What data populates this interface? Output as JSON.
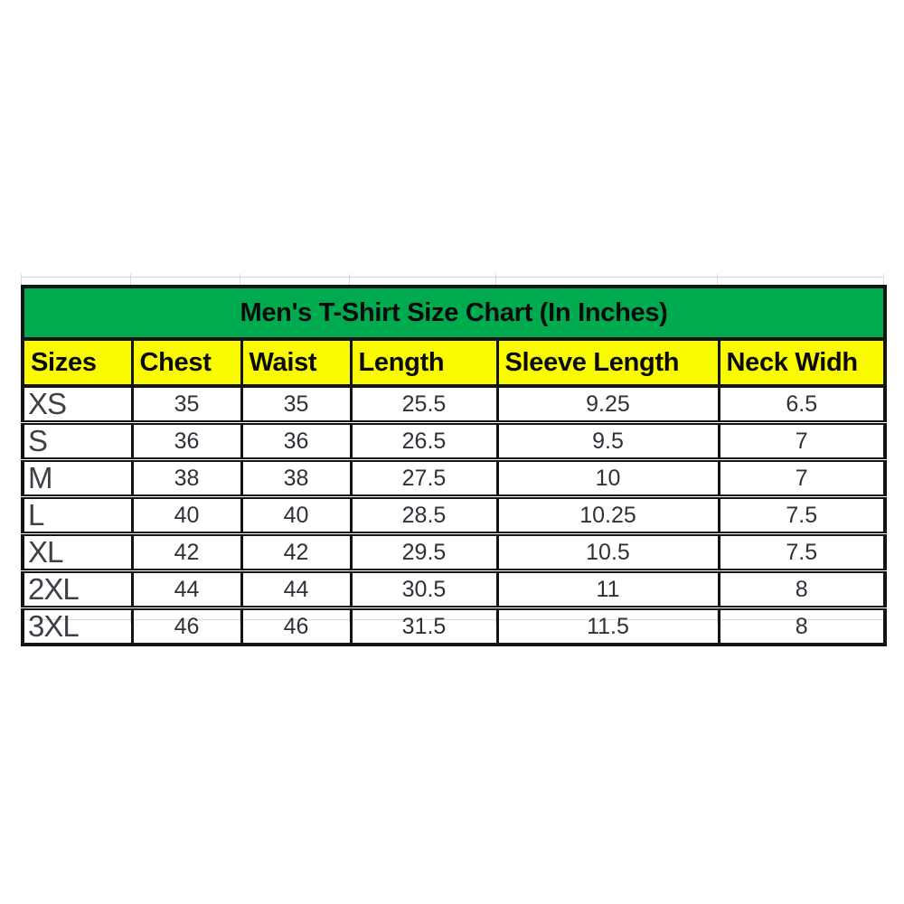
{
  "title": "Men's T-Shirt Size Chart (In Inches)",
  "columns": [
    "Sizes",
    "Chest",
    "Waist",
    "Length",
    "Sleeve Length",
    "Neck Widh"
  ],
  "rows": [
    [
      "XS",
      "35",
      "35",
      "25.5",
      "9.25",
      "6.5"
    ],
    [
      "S",
      "36",
      "36",
      "26.5",
      "9.5",
      "7"
    ],
    [
      "M",
      "38",
      "38",
      "27.5",
      "10",
      "7"
    ],
    [
      "L",
      "40",
      "40",
      "28.5",
      "10.25",
      "7.5"
    ],
    [
      "XL",
      "42",
      "42",
      "29.5",
      "10.5",
      "7.5"
    ],
    [
      "2XL",
      "44",
      "44",
      "30.5",
      "11",
      "8"
    ],
    [
      "3XL",
      "46",
      "46",
      "31.5",
      "11.5",
      "8"
    ]
  ],
  "colors": {
    "title_bg": "#00ab4f",
    "header_bg": "#fbfb00",
    "border": "#141414",
    "title_text": "#0a0a0a",
    "data_text": "#2e3238",
    "size_text": "#3d4147"
  },
  "chart_data": {
    "type": "table",
    "title": "Men's T-Shirt Size Chart (In Inches)",
    "columns": [
      "Sizes",
      "Chest",
      "Waist",
      "Length",
      "Sleeve Length",
      "Neck Widh"
    ],
    "rows": [
      {
        "size": "XS",
        "chest": 35,
        "waist": 35,
        "length": 25.5,
        "sleeve_length": 9.25,
        "neck_width": 6.5
      },
      {
        "size": "S",
        "chest": 36,
        "waist": 36,
        "length": 26.5,
        "sleeve_length": 9.5,
        "neck_width": 7
      },
      {
        "size": "M",
        "chest": 38,
        "waist": 38,
        "length": 27.5,
        "sleeve_length": 10,
        "neck_width": 7
      },
      {
        "size": "L",
        "chest": 40,
        "waist": 40,
        "length": 28.5,
        "sleeve_length": 10.25,
        "neck_width": 7.5
      },
      {
        "size": "XL",
        "chest": 42,
        "waist": 42,
        "length": 29.5,
        "sleeve_length": 10.5,
        "neck_width": 7.5
      },
      {
        "size": "2XL",
        "chest": 44,
        "waist": 44,
        "length": 30.5,
        "sleeve_length": 11,
        "neck_width": 8
      },
      {
        "size": "3XL",
        "chest": 46,
        "waist": 46,
        "length": 31.5,
        "sleeve_length": 11.5,
        "neck_width": 8
      }
    ],
    "units": "inches"
  }
}
